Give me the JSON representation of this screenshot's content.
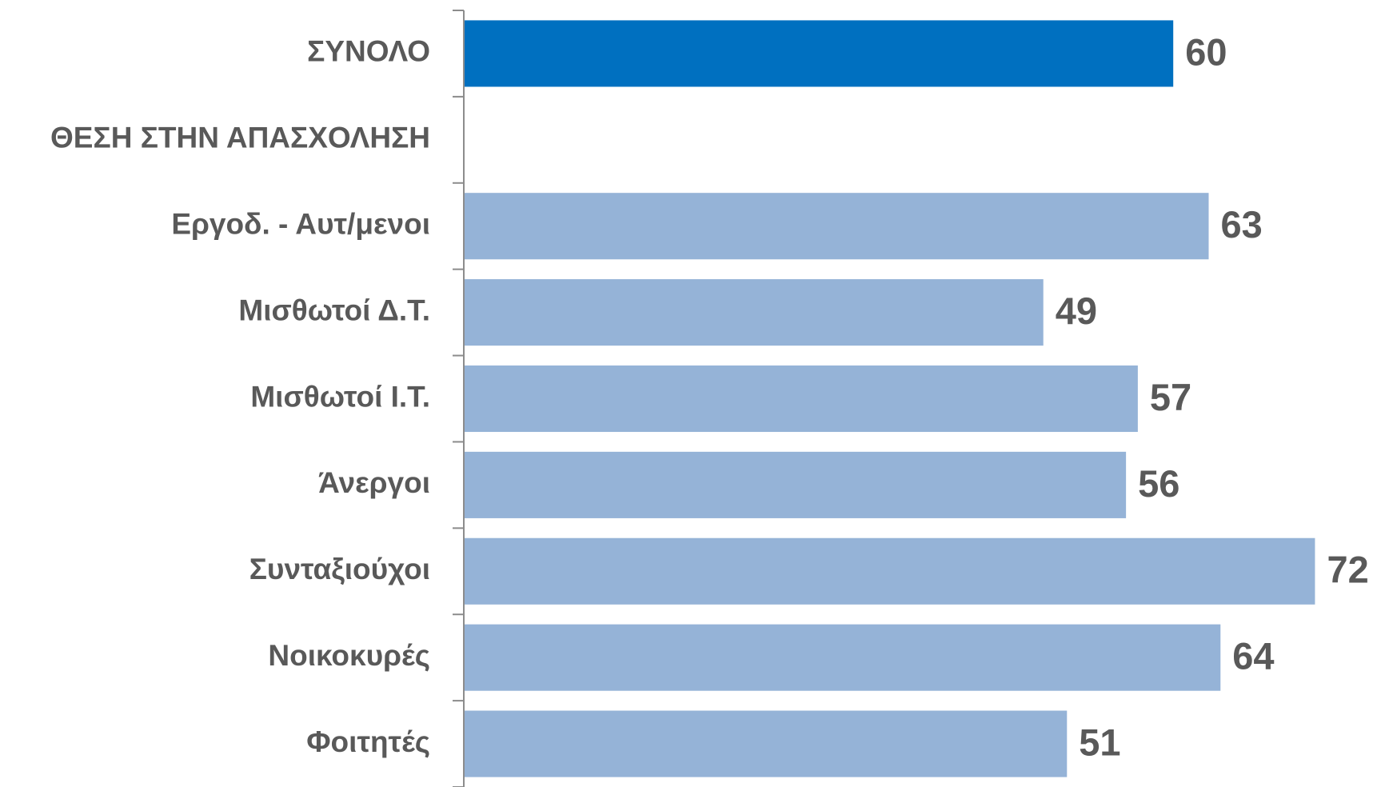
{
  "chart_data": {
    "type": "hbar",
    "categories": [
      "ΣΥΝΟΛΟ",
      "ΘΕΣΗ ΣΤΗΝ ΑΠΑΣΧΟΛΗΣΗ",
      "Εργοδ. - Αυτ/μενοι",
      "Μισθωτοί Δ.Τ.",
      "Μισθωτοί Ι.Τ.",
      "Άνεργοι",
      "Συνταξιούχοι",
      "Νοικοκυρές",
      "Φοιτητές"
    ],
    "values": [
      60,
      null,
      63,
      49,
      57,
      56,
      72,
      64,
      51
    ],
    "colors": [
      "#0070c0",
      null,
      "#95b3d7",
      "#95b3d7",
      "#95b3d7",
      "#95b3d7",
      "#95b3d7",
      "#95b3d7",
      "#95b3d7"
    ]
  }
}
